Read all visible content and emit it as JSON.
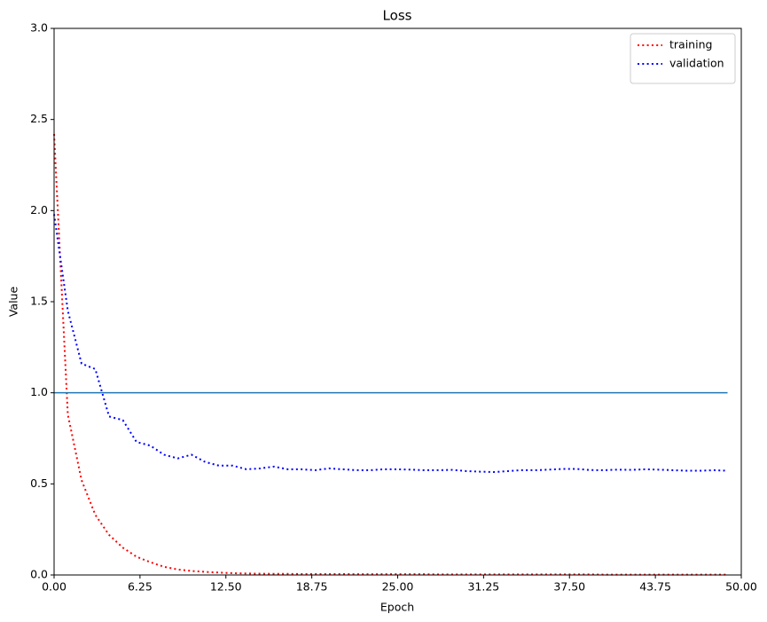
{
  "chart_data": {
    "type": "line",
    "title": "Loss",
    "x_label": "Epoch",
    "y_label": "Value",
    "x": [
      0,
      1,
      2,
      3,
      4,
      5,
      6,
      7,
      8,
      9,
      10,
      11,
      12,
      13,
      14,
      15,
      16,
      17,
      18,
      19,
      20,
      21,
      22,
      23,
      24,
      25,
      26,
      27,
      28,
      29,
      30,
      31,
      32,
      33,
      34,
      35,
      36,
      37,
      38,
      39,
      40,
      41,
      42,
      43,
      44,
      45,
      46,
      47,
      48,
      49
    ],
    "series": [
      {
        "name": "training",
        "color": "#ff0000",
        "values": [
          2.42,
          0.88,
          0.52,
          0.33,
          0.22,
          0.15,
          0.1,
          0.07,
          0.045,
          0.03,
          0.022,
          0.017,
          0.013,
          0.01,
          0.008,
          0.007,
          0.006,
          0.006,
          0.005,
          0.005,
          0.005,
          0.005,
          0.004,
          0.004,
          0.004,
          0.004,
          0.004,
          0.004,
          0.003,
          0.003,
          0.003,
          0.003,
          0.003,
          0.003,
          0.003,
          0.003,
          0.003,
          0.003,
          0.003,
          0.003,
          0.002,
          0.002,
          0.002,
          0.002,
          0.002,
          0.002,
          0.002,
          0.002,
          0.002,
          0.002
        ]
      },
      {
        "name": "validation",
        "color": "#0000ff",
        "values": [
          1.98,
          1.45,
          1.16,
          1.13,
          0.87,
          0.85,
          0.73,
          0.71,
          0.66,
          0.64,
          0.66,
          0.62,
          0.6,
          0.6,
          0.58,
          0.585,
          0.595,
          0.58,
          0.58,
          0.575,
          0.585,
          0.58,
          0.575,
          0.575,
          0.58,
          0.58,
          0.578,
          0.575,
          0.575,
          0.577,
          0.57,
          0.567,
          0.565,
          0.57,
          0.575,
          0.575,
          0.578,
          0.582,
          0.582,
          0.576,
          0.575,
          0.578,
          0.577,
          0.58,
          0.578,
          0.575,
          0.572,
          0.572,
          0.575,
          0.572
        ]
      }
    ],
    "hline": {
      "value": 1.0,
      "color": "#1f77b4"
    },
    "xlim": [
      0,
      50
    ],
    "ylim": [
      0,
      3
    ],
    "xticks": [
      {
        "value": 0,
        "label": "0.00"
      },
      {
        "value": 6.25,
        "label": "6.25"
      },
      {
        "value": 12.5,
        "label": "12.50"
      },
      {
        "value": 18.75,
        "label": "18.75"
      },
      {
        "value": 25,
        "label": "25.00"
      },
      {
        "value": 31.25,
        "label": "31.25"
      },
      {
        "value": 37.5,
        "label": "37.50"
      },
      {
        "value": 43.75,
        "label": "43.75"
      },
      {
        "value": 50,
        "label": "50.00"
      }
    ],
    "yticks": [
      {
        "value": 0,
        "label": "0.0"
      },
      {
        "value": 0.5,
        "label": "0.5"
      },
      {
        "value": 1,
        "label": "1.0"
      },
      {
        "value": 1.5,
        "label": "1.5"
      },
      {
        "value": 2,
        "label": "2.0"
      },
      {
        "value": 2.5,
        "label": "2.5"
      },
      {
        "value": 3,
        "label": "3.0"
      }
    ],
    "legend": "upper right",
    "grid": false
  }
}
